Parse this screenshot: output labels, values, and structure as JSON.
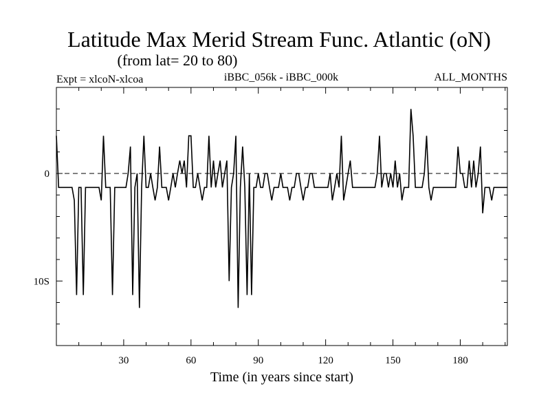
{
  "chart_data": {
    "type": "line",
    "title": "Latitude Max Merid Stream Func. Atlantic (oN)",
    "subtitle": "(from lat= 20 to 80)",
    "header_left": "Expt = xlcoN-xlcoa",
    "header_center": "iBBC_056k - iBBC_000k",
    "header_right": "ALL_MONTHS",
    "xlabel": "Time (in years since start)",
    "ylabel": "",
    "xlim": [
      0,
      201
    ],
    "ylim": [
      -16,
      8
    ],
    "x_ticks": [
      30,
      60,
      90,
      120,
      150,
      180
    ],
    "y_tick_labels": [
      {
        "value": 0,
        "label": "0"
      },
      {
        "value": -10,
        "label": "10S"
      }
    ],
    "zero_line": {
      "value": 0,
      "style": "dashed"
    },
    "series": [
      {
        "name": "Latitude Max Merid Stream Func.",
        "points": [
          [
            0,
            3.5
          ],
          [
            1,
            -1.3
          ],
          [
            2,
            -1.3
          ],
          [
            3,
            -1.3
          ],
          [
            4,
            -1.3
          ],
          [
            5,
            -1.3
          ],
          [
            6,
            -1.3
          ],
          [
            7,
            -1.3
          ],
          [
            8,
            -2.5
          ],
          [
            9,
            -11.3
          ],
          [
            10,
            -1.3
          ],
          [
            11,
            -1.3
          ],
          [
            12,
            -11.3
          ],
          [
            13,
            -1.3
          ],
          [
            14,
            -1.3
          ],
          [
            15,
            -1.3
          ],
          [
            16,
            -1.3
          ],
          [
            17,
            -1.3
          ],
          [
            18,
            -1.3
          ],
          [
            19,
            -1.3
          ],
          [
            20,
            -2.5
          ],
          [
            21,
            3.5
          ],
          [
            22,
            -1.3
          ],
          [
            23,
            -1.3
          ],
          [
            24,
            -1.3
          ],
          [
            25,
            -11.3
          ],
          [
            26,
            -1.3
          ],
          [
            27,
            -1.3
          ],
          [
            28,
            -1.3
          ],
          [
            29,
            -1.3
          ],
          [
            30,
            -1.3
          ],
          [
            31,
            -1.3
          ],
          [
            32,
            0
          ],
          [
            33,
            2.5
          ],
          [
            34,
            -11.3
          ],
          [
            35,
            -1.3
          ],
          [
            36,
            0
          ],
          [
            37,
            -12.5
          ],
          [
            38,
            -1.3
          ],
          [
            39,
            3.5
          ],
          [
            40,
            -1.3
          ],
          [
            41,
            -1.3
          ],
          [
            42,
            0
          ],
          [
            43,
            -1.3
          ],
          [
            44,
            -2.5
          ],
          [
            45,
            -1.3
          ],
          [
            46,
            2.5
          ],
          [
            47,
            -1.3
          ],
          [
            48,
            -1.3
          ],
          [
            49,
            -1.3
          ],
          [
            50,
            -2.5
          ],
          [
            51,
            -1.3
          ],
          [
            52,
            0
          ],
          [
            53,
            -1.3
          ],
          [
            54,
            0
          ],
          [
            55,
            1.2
          ],
          [
            56,
            0
          ],
          [
            57,
            1.2
          ],
          [
            58,
            -1.3
          ],
          [
            59,
            3.5
          ],
          [
            60,
            3.5
          ],
          [
            61,
            -1.3
          ],
          [
            62,
            -1.3
          ],
          [
            63,
            0
          ],
          [
            64,
            -1.3
          ],
          [
            65,
            -2.5
          ],
          [
            66,
            -1.3
          ],
          [
            67,
            -1.3
          ],
          [
            68,
            3.5
          ],
          [
            69,
            -1.3
          ],
          [
            70,
            1.2
          ],
          [
            71,
            -1.3
          ],
          [
            72,
            0
          ],
          [
            73,
            1.2
          ],
          [
            74,
            -1.3
          ],
          [
            75,
            0
          ],
          [
            76,
            1.2
          ],
          [
            77,
            -10
          ],
          [
            78,
            -1.3
          ],
          [
            79,
            0
          ],
          [
            80,
            3.5
          ],
          [
            81,
            -12.5
          ],
          [
            82,
            -1.3
          ],
          [
            83,
            2.5
          ],
          [
            84,
            -1.3
          ],
          [
            85,
            -11.3
          ],
          [
            86,
            0
          ],
          [
            87,
            -11.3
          ],
          [
            88,
            -1.3
          ],
          [
            89,
            -1.3
          ],
          [
            90,
            0
          ],
          [
            91,
            -1.3
          ],
          [
            92,
            -1.3
          ],
          [
            93,
            0
          ],
          [
            94,
            0
          ],
          [
            95,
            -1.3
          ],
          [
            96,
            -2.5
          ],
          [
            97,
            -1.3
          ],
          [
            98,
            -1.3
          ],
          [
            99,
            -1.3
          ],
          [
            100,
            0
          ],
          [
            101,
            -1.3
          ],
          [
            102,
            -1.3
          ],
          [
            103,
            -1.3
          ],
          [
            104,
            -2.5
          ],
          [
            105,
            -1.3
          ],
          [
            106,
            -1.3
          ],
          [
            107,
            0
          ],
          [
            108,
            0
          ],
          [
            109,
            -1.3
          ],
          [
            110,
            -2.5
          ],
          [
            111,
            -1.3
          ],
          [
            112,
            -1.3
          ],
          [
            113,
            0
          ],
          [
            114,
            0
          ],
          [
            115,
            -1.3
          ],
          [
            116,
            -1.3
          ],
          [
            117,
            -1.3
          ],
          [
            118,
            -1.3
          ],
          [
            119,
            -1.3
          ],
          [
            120,
            -1.3
          ],
          [
            121,
            -1.3
          ],
          [
            122,
            0
          ],
          [
            123,
            -2.5
          ],
          [
            124,
            -1.3
          ],
          [
            125,
            0
          ],
          [
            126,
            -1.3
          ],
          [
            127,
            3.5
          ],
          [
            128,
            -2.5
          ],
          [
            129,
            -1.3
          ],
          [
            130,
            0
          ],
          [
            131,
            1.2
          ],
          [
            132,
            -1.3
          ],
          [
            133,
            -1.3
          ],
          [
            134,
            -1.3
          ],
          [
            135,
            -1.3
          ],
          [
            136,
            -1.3
          ],
          [
            137,
            -1.3
          ],
          [
            138,
            -1.3
          ],
          [
            139,
            -1.3
          ],
          [
            140,
            -1.3
          ],
          [
            141,
            -1.3
          ],
          [
            142,
            -1.3
          ],
          [
            143,
            0
          ],
          [
            144,
            3.5
          ],
          [
            145,
            -1.3
          ],
          [
            146,
            0
          ],
          [
            147,
            0
          ],
          [
            148,
            -1.3
          ],
          [
            149,
            0
          ],
          [
            150,
            -1.3
          ],
          [
            151,
            1.2
          ],
          [
            152,
            -1.3
          ],
          [
            153,
            0
          ],
          [
            154,
            -2.5
          ],
          [
            155,
            -1.3
          ],
          [
            156,
            -1.3
          ],
          [
            157,
            -1.3
          ],
          [
            158,
            6
          ],
          [
            159,
            3.5
          ],
          [
            160,
            -1.3
          ],
          [
            161,
            -1.3
          ],
          [
            162,
            -1.3
          ],
          [
            163,
            -1.3
          ],
          [
            164,
            0
          ],
          [
            165,
            3.5
          ],
          [
            166,
            -1.3
          ],
          [
            167,
            -2.5
          ],
          [
            168,
            -1.3
          ],
          [
            169,
            -1.3
          ],
          [
            170,
            -1.3
          ],
          [
            171,
            -1.3
          ],
          [
            172,
            -1.3
          ],
          [
            173,
            -1.3
          ],
          [
            174,
            -1.3
          ],
          [
            175,
            -1.3
          ],
          [
            176,
            -1.3
          ],
          [
            177,
            -1.3
          ],
          [
            178,
            -1.3
          ],
          [
            179,
            2.5
          ],
          [
            180,
            0
          ],
          [
            181,
            0
          ],
          [
            182,
            -1.3
          ],
          [
            183,
            -1.3
          ],
          [
            184,
            1.2
          ],
          [
            185,
            -1.3
          ],
          [
            186,
            1.2
          ],
          [
            187,
            -1.3
          ],
          [
            188,
            0
          ],
          [
            189,
            2.5
          ],
          [
            190,
            -3.7
          ],
          [
            191,
            -1.3
          ],
          [
            192,
            -1.3
          ],
          [
            193,
            -1.3
          ],
          [
            194,
            -2.5
          ],
          [
            195,
            -1.3
          ],
          [
            196,
            -1.3
          ],
          [
            197,
            -1.3
          ],
          [
            198,
            -1.3
          ],
          [
            199,
            -1.3
          ],
          [
            200,
            -1.3
          ],
          [
            201,
            -1.3
          ]
        ]
      }
    ]
  }
}
